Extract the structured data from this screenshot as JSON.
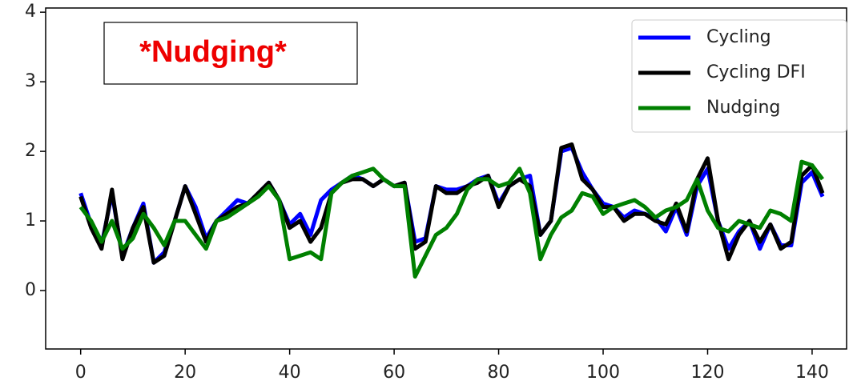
{
  "chart_data": {
    "type": "line",
    "annotation": "*Nudging*",
    "x": [
      0,
      2,
      4,
      6,
      8,
      10,
      12,
      14,
      16,
      18,
      20,
      22,
      24,
      26,
      28,
      30,
      32,
      34,
      36,
      38,
      40,
      42,
      44,
      46,
      48,
      50,
      52,
      54,
      56,
      58,
      60,
      62,
      64,
      66,
      68,
      70,
      72,
      74,
      76,
      78,
      80,
      82,
      84,
      86,
      88,
      90,
      92,
      94,
      96,
      98,
      100,
      102,
      104,
      106,
      108,
      110,
      112,
      114,
      116,
      118,
      120,
      122,
      124,
      126,
      128,
      130,
      132,
      134,
      136,
      138,
      140,
      142
    ],
    "series": [
      {
        "name": "Cycling",
        "color": "#0000ff",
        "values": [
          1.4,
          0.95,
          0.65,
          1.4,
          0.5,
          0.9,
          1.25,
          0.4,
          0.55,
          1.0,
          1.5,
          1.2,
          0.75,
          1.0,
          1.15,
          1.3,
          1.25,
          1.4,
          1.55,
          1.3,
          0.95,
          1.1,
          0.8,
          1.3,
          1.45,
          1.55,
          1.65,
          1.6,
          1.5,
          1.6,
          1.5,
          1.55,
          0.7,
          0.75,
          1.5,
          1.45,
          1.45,
          1.5,
          1.6,
          1.65,
          1.25,
          1.5,
          1.6,
          1.65,
          0.8,
          1.0,
          2.0,
          2.05,
          1.7,
          1.45,
          1.25,
          1.2,
          1.05,
          1.15,
          1.1,
          1.05,
          0.85,
          1.2,
          0.8,
          1.5,
          1.75,
          1.0,
          0.6,
          0.85,
          1.0,
          0.6,
          0.95,
          0.65,
          0.65,
          1.55,
          1.7,
          1.35
        ]
      },
      {
        "name": "Cycling DFI",
        "color": "#000000",
        "values": [
          1.35,
          0.9,
          0.6,
          1.45,
          0.45,
          0.9,
          1.2,
          0.4,
          0.5,
          1.0,
          1.5,
          1.1,
          0.7,
          1.0,
          1.1,
          1.2,
          1.25,
          1.4,
          1.55,
          1.3,
          0.9,
          1.0,
          0.7,
          0.9,
          1.4,
          1.55,
          1.6,
          1.6,
          1.5,
          1.6,
          1.5,
          1.55,
          0.6,
          0.7,
          1.5,
          1.4,
          1.4,
          1.5,
          1.55,
          1.65,
          1.2,
          1.5,
          1.6,
          1.5,
          0.8,
          1.0,
          2.05,
          2.1,
          1.6,
          1.45,
          1.2,
          1.2,
          1.0,
          1.1,
          1.1,
          1.0,
          0.95,
          1.25,
          0.85,
          1.6,
          1.9,
          1.0,
          0.45,
          0.8,
          1.0,
          0.7,
          0.95,
          0.6,
          0.7,
          1.65,
          1.8,
          1.4
        ]
      },
      {
        "name": "Nudging",
        "color": "#008000",
        "values": [
          1.2,
          1.0,
          0.7,
          1.0,
          0.6,
          0.75,
          1.1,
          0.9,
          0.65,
          1.0,
          1.0,
          0.8,
          0.6,
          1.0,
          1.05,
          1.15,
          1.25,
          1.35,
          1.5,
          1.3,
          0.45,
          0.5,
          0.55,
          0.45,
          1.4,
          1.55,
          1.65,
          1.7,
          1.75,
          1.6,
          1.5,
          1.5,
          0.2,
          0.5,
          0.8,
          0.9,
          1.1,
          1.45,
          1.6,
          1.6,
          1.5,
          1.55,
          1.75,
          1.4,
          0.45,
          0.8,
          1.05,
          1.15,
          1.4,
          1.35,
          1.1,
          1.2,
          1.25,
          1.3,
          1.2,
          1.05,
          1.15,
          1.2,
          1.3,
          1.6,
          1.15,
          0.9,
          0.85,
          1.0,
          0.95,
          0.9,
          1.15,
          1.1,
          1.0,
          1.85,
          1.8,
          1.6
        ]
      }
    ],
    "xlim": [
      -6.7,
      146.6
    ],
    "ylim": [
      -0.84,
      4.06
    ],
    "xticks": [
      0,
      20,
      40,
      60,
      80,
      100,
      120,
      140
    ],
    "yticks": [
      0,
      1,
      2,
      3,
      4
    ],
    "legend": "upper right"
  }
}
